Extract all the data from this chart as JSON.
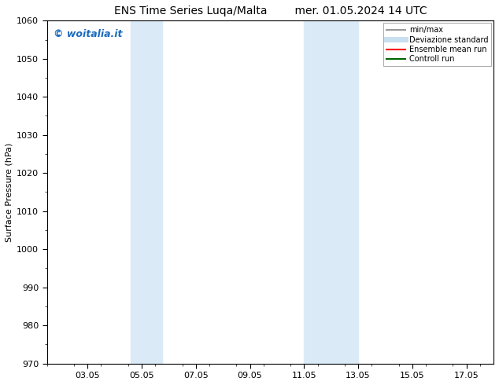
{
  "title_left": "ENS Time Series Luqa/Malta",
  "title_right": "mer. 01.05.2024 14 UTC",
  "ylabel": "Surface Pressure (hPa)",
  "ylim": [
    970,
    1060
  ],
  "yticks": [
    970,
    980,
    990,
    1000,
    1010,
    1020,
    1030,
    1040,
    1050,
    1060
  ],
  "xlim": [
    1.5,
    18.0
  ],
  "xtick_labels": [
    "03.05",
    "05.05",
    "07.05",
    "09.05",
    "11.05",
    "13.05",
    "15.05",
    "17.05"
  ],
  "xtick_positions": [
    3,
    5,
    7,
    9,
    11,
    13,
    15,
    17
  ],
  "shaded_bands": [
    {
      "x_start": 4.6,
      "x_end": 5.75,
      "color": "#daeaf7"
    },
    {
      "x_start": 11.0,
      "x_end": 13.0,
      "color": "#daeaf7"
    }
  ],
  "watermark": "© woitalia.it",
  "watermark_color": "#1a6bbf",
  "legend_entries": [
    {
      "label": "min/max",
      "color": "#999999",
      "lw": 1.5
    },
    {
      "label": "Deviazione standard",
      "color": "#c8dff0",
      "lw": 5
    },
    {
      "label": "Ensemble mean run",
      "color": "#ff0000",
      "lw": 1.5
    },
    {
      "label": "Controll run",
      "color": "#006600",
      "lw": 1.5
    }
  ],
  "bg_color": "#ffffff",
  "font_size_title": 10,
  "font_size_axis": 8,
  "font_size_legend": 7,
  "font_size_watermark": 9
}
